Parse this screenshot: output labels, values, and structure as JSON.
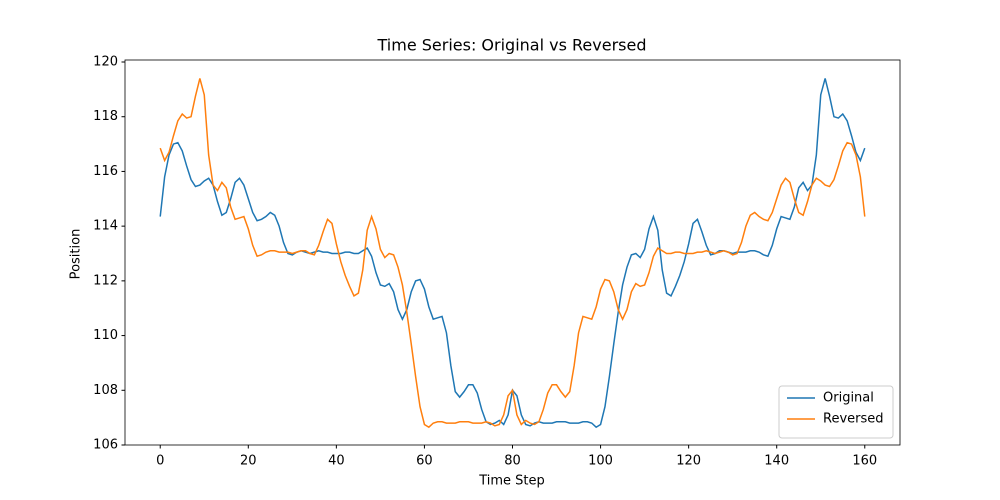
{
  "chart_data": {
    "type": "line",
    "title": "Time Series: Original vs Reversed",
    "xlabel": "Time Step",
    "ylabel": "Position",
    "x": [
      0,
      1,
      2,
      3,
      4,
      5,
      6,
      7,
      8,
      9,
      10,
      11,
      12,
      13,
      14,
      15,
      16,
      17,
      18,
      19,
      20,
      21,
      22,
      23,
      24,
      25,
      26,
      27,
      28,
      29,
      30,
      31,
      32,
      33,
      34,
      35,
      36,
      37,
      38,
      39,
      40,
      41,
      42,
      43,
      44,
      45,
      46,
      47,
      48,
      49,
      50,
      51,
      52,
      53,
      54,
      55,
      56,
      57,
      58,
      59,
      60,
      61,
      62,
      63,
      64,
      65,
      66,
      67,
      68,
      69,
      70,
      71,
      72,
      73,
      74,
      75,
      76,
      77,
      78,
      79,
      80,
      81,
      82,
      83,
      84,
      85,
      86,
      87,
      88,
      89,
      90,
      91,
      92,
      93,
      94,
      95,
      96,
      97,
      98,
      99,
      100,
      101,
      102,
      103,
      104,
      105,
      106,
      107,
      108,
      109,
      110,
      111,
      112,
      113,
      114,
      115,
      116,
      117,
      118,
      119,
      120,
      121,
      122,
      123,
      124,
      125,
      126,
      127,
      128,
      129,
      130,
      131,
      132,
      133,
      134,
      135,
      136,
      137,
      138,
      139,
      140,
      141,
      142,
      143,
      144,
      145,
      146,
      147,
      148,
      149,
      150,
      151,
      152,
      153,
      154,
      155,
      156,
      157,
      158,
      159,
      160
    ],
    "series": [
      {
        "name": "Original",
        "color": "#1f77b4",
        "values": [
          114.35,
          115.8,
          116.6,
          117.0,
          117.05,
          116.75,
          116.2,
          115.7,
          115.45,
          115.5,
          115.65,
          115.75,
          115.5,
          114.9,
          114.4,
          114.5,
          115.0,
          115.6,
          115.75,
          115.5,
          115.0,
          114.5,
          114.2,
          114.25,
          114.35,
          114.5,
          114.4,
          114.0,
          113.4,
          113.0,
          112.95,
          113.05,
          113.1,
          113.05,
          113.0,
          113.05,
          113.1,
          113.05,
          113.05,
          113.0,
          113.0,
          113.0,
          113.05,
          113.05,
          113.0,
          113.0,
          113.1,
          113.2,
          112.9,
          112.3,
          111.85,
          111.8,
          111.9,
          111.6,
          110.95,
          110.6,
          110.95,
          111.6,
          112.0,
          112.05,
          111.7,
          111.05,
          110.6,
          110.65,
          110.7,
          110.1,
          108.9,
          107.95,
          107.75,
          107.95,
          108.2,
          108.2,
          107.9,
          107.3,
          106.85,
          106.75,
          106.8,
          106.9,
          106.75,
          107.1,
          108.0,
          107.8,
          107.1,
          106.75,
          106.7,
          106.8,
          106.85,
          106.8,
          106.8,
          106.8,
          106.85,
          106.85,
          106.85,
          106.8,
          106.8,
          106.8,
          106.85,
          106.85,
          106.8,
          106.65,
          106.75,
          107.4,
          108.5,
          109.7,
          110.85,
          111.85,
          112.5,
          112.95,
          113.0,
          112.85,
          113.15,
          113.9,
          114.35,
          113.85,
          112.4,
          111.55,
          111.45,
          111.8,
          112.2,
          112.7,
          113.35,
          114.1,
          114.25,
          113.8,
          113.3,
          112.95,
          113.0,
          113.1,
          113.1,
          113.05,
          113.0,
          113.05,
          113.05,
          113.05,
          113.1,
          113.1,
          113.05,
          112.95,
          112.9,
          113.3,
          113.9,
          114.35,
          114.3,
          114.25,
          114.7,
          115.4,
          115.6,
          115.3,
          115.5,
          116.6,
          118.8,
          119.4,
          118.75,
          118.0,
          117.95,
          118.1,
          117.85,
          117.3,
          116.7,
          116.4,
          116.85
        ]
      },
      {
        "name": "Reversed",
        "color": "#ff7f0e",
        "values": [
          116.85,
          116.4,
          116.7,
          117.3,
          117.85,
          118.1,
          117.95,
          118.0,
          118.75,
          119.4,
          118.8,
          116.6,
          115.5,
          115.3,
          115.6,
          115.4,
          114.7,
          114.25,
          114.3,
          114.35,
          113.9,
          113.3,
          112.9,
          112.95,
          113.05,
          113.1,
          113.1,
          113.05,
          113.05,
          113.05,
          113.0,
          113.05,
          113.1,
          113.1,
          113.0,
          112.95,
          113.3,
          113.8,
          114.25,
          114.1,
          113.35,
          112.7,
          112.2,
          111.8,
          111.45,
          111.55,
          112.4,
          113.85,
          114.35,
          113.9,
          113.15,
          112.85,
          113.0,
          112.95,
          112.5,
          111.85,
          110.85,
          109.7,
          108.5,
          107.4,
          106.75,
          106.65,
          106.8,
          106.85,
          106.85,
          106.8,
          106.8,
          106.8,
          106.85,
          106.85,
          106.85,
          106.8,
          106.8,
          106.8,
          106.85,
          106.8,
          106.7,
          106.75,
          107.1,
          107.8,
          108.0,
          107.1,
          106.75,
          106.9,
          106.8,
          106.75,
          106.85,
          107.3,
          107.9,
          108.2,
          108.2,
          107.95,
          107.75,
          107.95,
          108.9,
          110.1,
          110.7,
          110.65,
          110.6,
          111.05,
          111.7,
          112.05,
          112.0,
          111.6,
          110.95,
          110.6,
          110.95,
          111.6,
          111.9,
          111.8,
          111.85,
          112.3,
          112.9,
          113.2,
          113.1,
          113.0,
          113.0,
          113.05,
          113.05,
          113.0,
          113.0,
          113.0,
          113.05,
          113.05,
          113.1,
          113.05,
          113.0,
          113.05,
          113.1,
          113.05,
          112.95,
          113.0,
          113.4,
          114.0,
          114.4,
          114.5,
          114.35,
          114.25,
          114.2,
          114.5,
          115.0,
          115.5,
          115.75,
          115.6,
          115.0,
          114.5,
          114.4,
          114.9,
          115.5,
          115.75,
          115.65,
          115.5,
          115.45,
          115.7,
          116.2,
          116.75,
          117.05,
          117.0,
          116.6,
          115.8,
          114.35
        ]
      }
    ],
    "xlim": [
      -8,
      168
    ],
    "xticks": [
      0,
      20,
      40,
      60,
      80,
      100,
      120,
      140,
      160
    ],
    "ylim": [
      106,
      120
    ],
    "yticks": [
      106,
      108,
      110,
      112,
      114,
      116,
      118,
      120
    ],
    "legend": "lower right"
  }
}
